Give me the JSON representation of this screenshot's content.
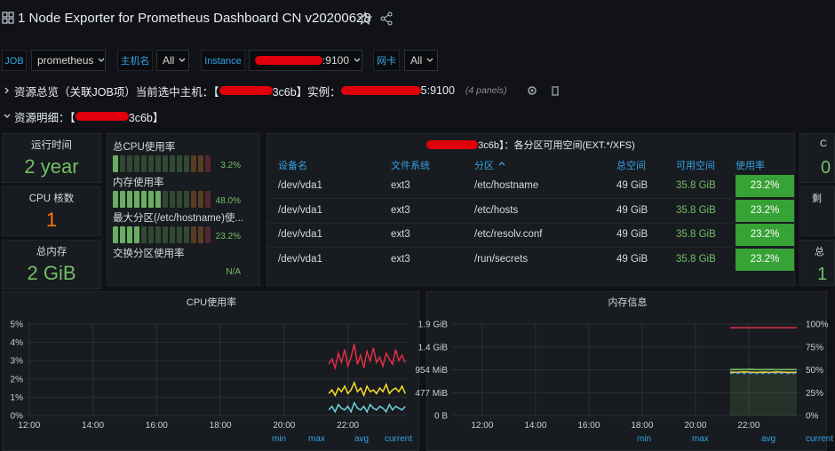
{
  "header": {
    "title": "1 Node Exporter for Prometheus Dashboard CN v20200628"
  },
  "variables": [
    {
      "label": "JOB",
      "value": "prometheus"
    },
    {
      "label": "主机名",
      "value": "All"
    },
    {
      "label": "Instance",
      "value": ":9100"
    },
    {
      "label": "网卡",
      "value": "All"
    }
  ],
  "rows": [
    {
      "text_parts": [
        "资源总览（关联JOB项）当前选中主机：【",
        "3c6b】实例：",
        "5:9100"
      ],
      "panels": "(4 panels)"
    },
    {
      "text_parts": [
        "资源明细：【",
        "3c6b】"
      ]
    }
  ],
  "stats": [
    {
      "title": "运行时间",
      "value": "2 year"
    },
    {
      "title": "CPU 核数",
      "value": "1"
    },
    {
      "title": "总内存",
      "value": "2 GiB"
    }
  ],
  "gauges": [
    {
      "label": "总CPU使用率",
      "value": 3.2,
      "value_label": "3.2%"
    },
    {
      "label": "内存使用率",
      "value": 48.0,
      "value_label": "48.0%"
    },
    {
      "label": "最大分区(/etc/hostname)使...",
      "value": 23.2,
      "value_label": "23.2%"
    },
    {
      "label": "交换分区使用率",
      "value": null,
      "value_label": "N/A"
    }
  ],
  "table": {
    "title": "3c6b】：各分区可用空间(EXT.*/XFS)",
    "columns": [
      "设备名",
      "文件系统",
      "分区",
      "总空间",
      "可用空间",
      "使用率"
    ],
    "rows": [
      [
        "/dev/vda1",
        "ext3",
        "/etc/hostname",
        "49 GiB",
        "35.8 GiB",
        "23.2%"
      ],
      [
        "/dev/vda1",
        "ext3",
        "/etc/hosts",
        "49 GiB",
        "35.8 GiB",
        "23.2%"
      ],
      [
        "/dev/vda1",
        "ext3",
        "/etc/resolv.conf",
        "49 GiB",
        "35.8 GiB",
        "23.2%"
      ],
      [
        "/dev/vda1",
        "ext3",
        "/run/secrets",
        "49 GiB",
        "35.8 GiB",
        "23.2%"
      ]
    ]
  },
  "edge_panels": [
    "C",
    "0",
    "剩",
    "总",
    "1"
  ],
  "chart_data": [
    {
      "type": "line",
      "title": "CPU使用率",
      "xlim": [
        11.95,
        23.85
      ],
      "xticks": [
        {
          "value": 12,
          "label": "12:00"
        },
        {
          "value": 14,
          "label": "14:00"
        },
        {
          "value": 16,
          "label": "16:00"
        },
        {
          "value": 18,
          "label": "18:00"
        },
        {
          "value": 20,
          "label": "20:00"
        },
        {
          "value": 22,
          "label": "22:00"
        }
      ],
      "ylim": [
        0,
        5
      ],
      "yticks": [
        {
          "value": 0,
          "label": "0%"
        },
        {
          "value": 1,
          "label": "1%"
        },
        {
          "value": 2,
          "label": "2%"
        },
        {
          "value": 3,
          "label": "3%"
        },
        {
          "value": 4,
          "label": "4%"
        },
        {
          "value": 5,
          "label": "5%"
        }
      ],
      "grid": true,
      "legend_columns": [
        "min",
        "max",
        "avg",
        "current"
      ],
      "series": [
        {
          "color": "#e02f44",
          "x": [
            21.4,
            21.5,
            21.6,
            21.7,
            21.8,
            21.9,
            22.0,
            22.1,
            22.2,
            22.3,
            22.4,
            22.5,
            22.6,
            22.7,
            22.8,
            22.9,
            23.0,
            23.1,
            23.2,
            23.3,
            23.4,
            23.5,
            23.6,
            23.7,
            23.8
          ],
          "values": [
            2.8,
            3.1,
            2.6,
            3.4,
            2.9,
            3.6,
            2.7,
            3.2,
            3.9,
            2.8,
            3.3,
            2.6,
            3.5,
            3.0,
            3.7,
            2.9,
            3.2,
            2.7,
            3.4,
            3.1,
            2.8,
            3.6,
            3.0,
            3.3,
            2.9
          ]
        },
        {
          "color": "#fade2a",
          "x": [
            21.4,
            21.5,
            21.6,
            21.7,
            21.8,
            21.9,
            22.0,
            22.1,
            22.2,
            22.3,
            22.4,
            22.5,
            22.6,
            22.7,
            22.8,
            22.9,
            23.0,
            23.1,
            23.2,
            23.3,
            23.4,
            23.5,
            23.6,
            23.7,
            23.8
          ],
          "values": [
            1.2,
            1.4,
            1.1,
            1.5,
            1.3,
            1.6,
            1.2,
            1.4,
            1.8,
            1.3,
            1.5,
            1.1,
            1.6,
            1.3,
            1.4,
            1.2,
            1.5,
            1.3,
            1.7,
            1.2,
            1.4,
            1.5,
            1.3,
            1.6,
            1.2
          ]
        },
        {
          "color": "#6ed0e0",
          "x": [
            21.4,
            21.5,
            21.6,
            21.7,
            21.8,
            21.9,
            22.0,
            22.1,
            22.2,
            22.3,
            22.4,
            22.5,
            22.6,
            22.7,
            22.8,
            22.9,
            23.0,
            23.1,
            23.2,
            23.3,
            23.4,
            23.5,
            23.6,
            23.7,
            23.8
          ],
          "values": [
            0.3,
            0.5,
            0.2,
            0.6,
            0.4,
            0.3,
            0.5,
            0.2,
            0.7,
            0.4,
            0.3,
            0.5,
            0.2,
            0.6,
            0.4,
            0.3,
            0.5,
            0.4,
            0.2,
            0.6,
            0.3,
            0.5,
            0.4,
            0.3,
            0.5
          ]
        }
      ]
    },
    {
      "type": "line",
      "title": "内存信息",
      "xlim": [
        10.87,
        23.87
      ],
      "xticks": [
        {
          "value": 12,
          "label": "12:00"
        },
        {
          "value": 14,
          "label": "14:00"
        },
        {
          "value": 16,
          "label": "16:00"
        },
        {
          "value": 18,
          "label": "18:00"
        },
        {
          "value": 20,
          "label": "20:00"
        },
        {
          "value": 22,
          "label": "22:00"
        }
      ],
      "ylim": [
        0,
        1908
      ],
      "yticks": [
        {
          "value": 0,
          "label": "0 B"
        },
        {
          "value": 477,
          "label": "477 MiB"
        },
        {
          "value": 954,
          "label": "954 MiB"
        },
        {
          "value": 1431,
          "label": "1.4 GiB"
        },
        {
          "value": 1908,
          "label": "1.9 GiB"
        }
      ],
      "y2lim": [
        0,
        100
      ],
      "y2ticks": [
        {
          "value": 0,
          "label": "0%"
        },
        {
          "value": 25,
          "label": "25%"
        },
        {
          "value": 50,
          "label": "50%"
        },
        {
          "value": 75,
          "label": "75%"
        },
        {
          "value": 100,
          "label": "100%"
        }
      ],
      "grid": true,
      "legend_columns": [
        "min",
        "max",
        "avg",
        "current"
      ],
      "series": [
        {
          "color": "#e02f44",
          "axis": "y2",
          "x": [
            21.3,
            21.55,
            21.8,
            22.05,
            22.3,
            22.55,
            22.8,
            23.05,
            23.3,
            23.55,
            23.8
          ],
          "values": [
            96,
            96,
            96,
            96,
            96,
            96,
            96,
            96,
            96,
            96,
            96
          ]
        },
        {
          "color": "#73bf69",
          "fill": true,
          "x": [
            21.3,
            21.55,
            21.8,
            22.05,
            22.3,
            22.55,
            22.8,
            23.05,
            23.3,
            23.55,
            23.8
          ],
          "values": [
            960,
            962,
            958,
            965,
            960,
            958,
            962,
            955,
            960,
            958,
            960
          ]
        },
        {
          "color": "#fade2a",
          "x": [
            21.3,
            21.55,
            21.8,
            22.05,
            22.3,
            22.55,
            22.8,
            23.05,
            23.3,
            23.55,
            23.8
          ],
          "values": [
            905,
            900,
            910,
            902,
            898,
            905,
            900,
            908,
            902,
            899,
            904
          ]
        },
        {
          "color": "#5794f2",
          "dashed": true,
          "x": [
            21.3,
            21.55,
            21.8,
            22.05,
            22.3,
            22.55,
            22.8,
            23.05,
            23.3,
            23.55,
            23.8
          ],
          "values": [
            880,
            884,
            878,
            882,
            880,
            879,
            883,
            880,
            881,
            878,
            882
          ]
        }
      ]
    }
  ]
}
